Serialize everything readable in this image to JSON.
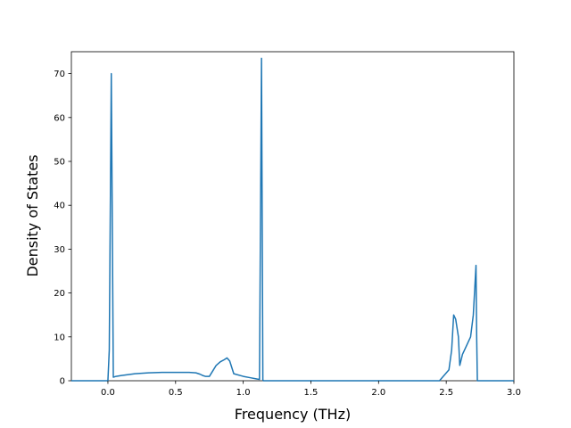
{
  "chart_data": {
    "type": "line",
    "xlabel": "Frequency (THz)",
    "ylabel": "Density of States",
    "xlim": [
      -0.27,
      3.0
    ],
    "ylim": [
      0,
      75
    ],
    "xticks": [
      0.0,
      0.5,
      1.0,
      1.5,
      2.0,
      2.5,
      3.0
    ],
    "xtick_labels": [
      "0.0",
      "0.5",
      "1.0",
      "1.5",
      "2.0",
      "2.5",
      "3.0"
    ],
    "yticks": [
      0,
      10,
      20,
      30,
      40,
      50,
      60,
      70
    ],
    "ytick_labels": [
      "0",
      "10",
      "20",
      "30",
      "40",
      "50",
      "60",
      "70"
    ],
    "grid": false,
    "line_color": "#1f77b4",
    "series": [
      {
        "x": [
          -0.27,
          0.0,
          0.01,
          0.025,
          0.04,
          0.06,
          0.1,
          0.15,
          0.2,
          0.3,
          0.4,
          0.5,
          0.6,
          0.65,
          0.68,
          0.7,
          0.72,
          0.75,
          0.78,
          0.8,
          0.83,
          0.86,
          0.88,
          0.9,
          0.93,
          1.0,
          1.05,
          1.1,
          1.12,
          1.135,
          1.145,
          1.15,
          1.2,
          1.5,
          2.0,
          2.3,
          2.45,
          2.52,
          2.54,
          2.555,
          2.57,
          2.59,
          2.6,
          2.62,
          2.65,
          2.68,
          2.7,
          2.72,
          2.725,
          2.73,
          3.0
        ],
        "y": [
          0,
          0,
          7,
          70,
          0.8,
          1.0,
          1.2,
          1.4,
          1.6,
          1.8,
          1.9,
          1.9,
          1.9,
          1.8,
          1.5,
          1.2,
          1.0,
          1.0,
          2.5,
          3.5,
          4.3,
          4.8,
          5.2,
          4.5,
          1.6,
          1.0,
          0.7,
          0.4,
          0.3,
          73.5,
          0.2,
          0,
          0,
          0,
          0,
          0,
          0,
          2.5,
          7,
          15,
          14,
          10,
          3.5,
          6,
          8,
          10,
          15,
          26.3,
          10,
          0,
          0
        ]
      }
    ]
  }
}
